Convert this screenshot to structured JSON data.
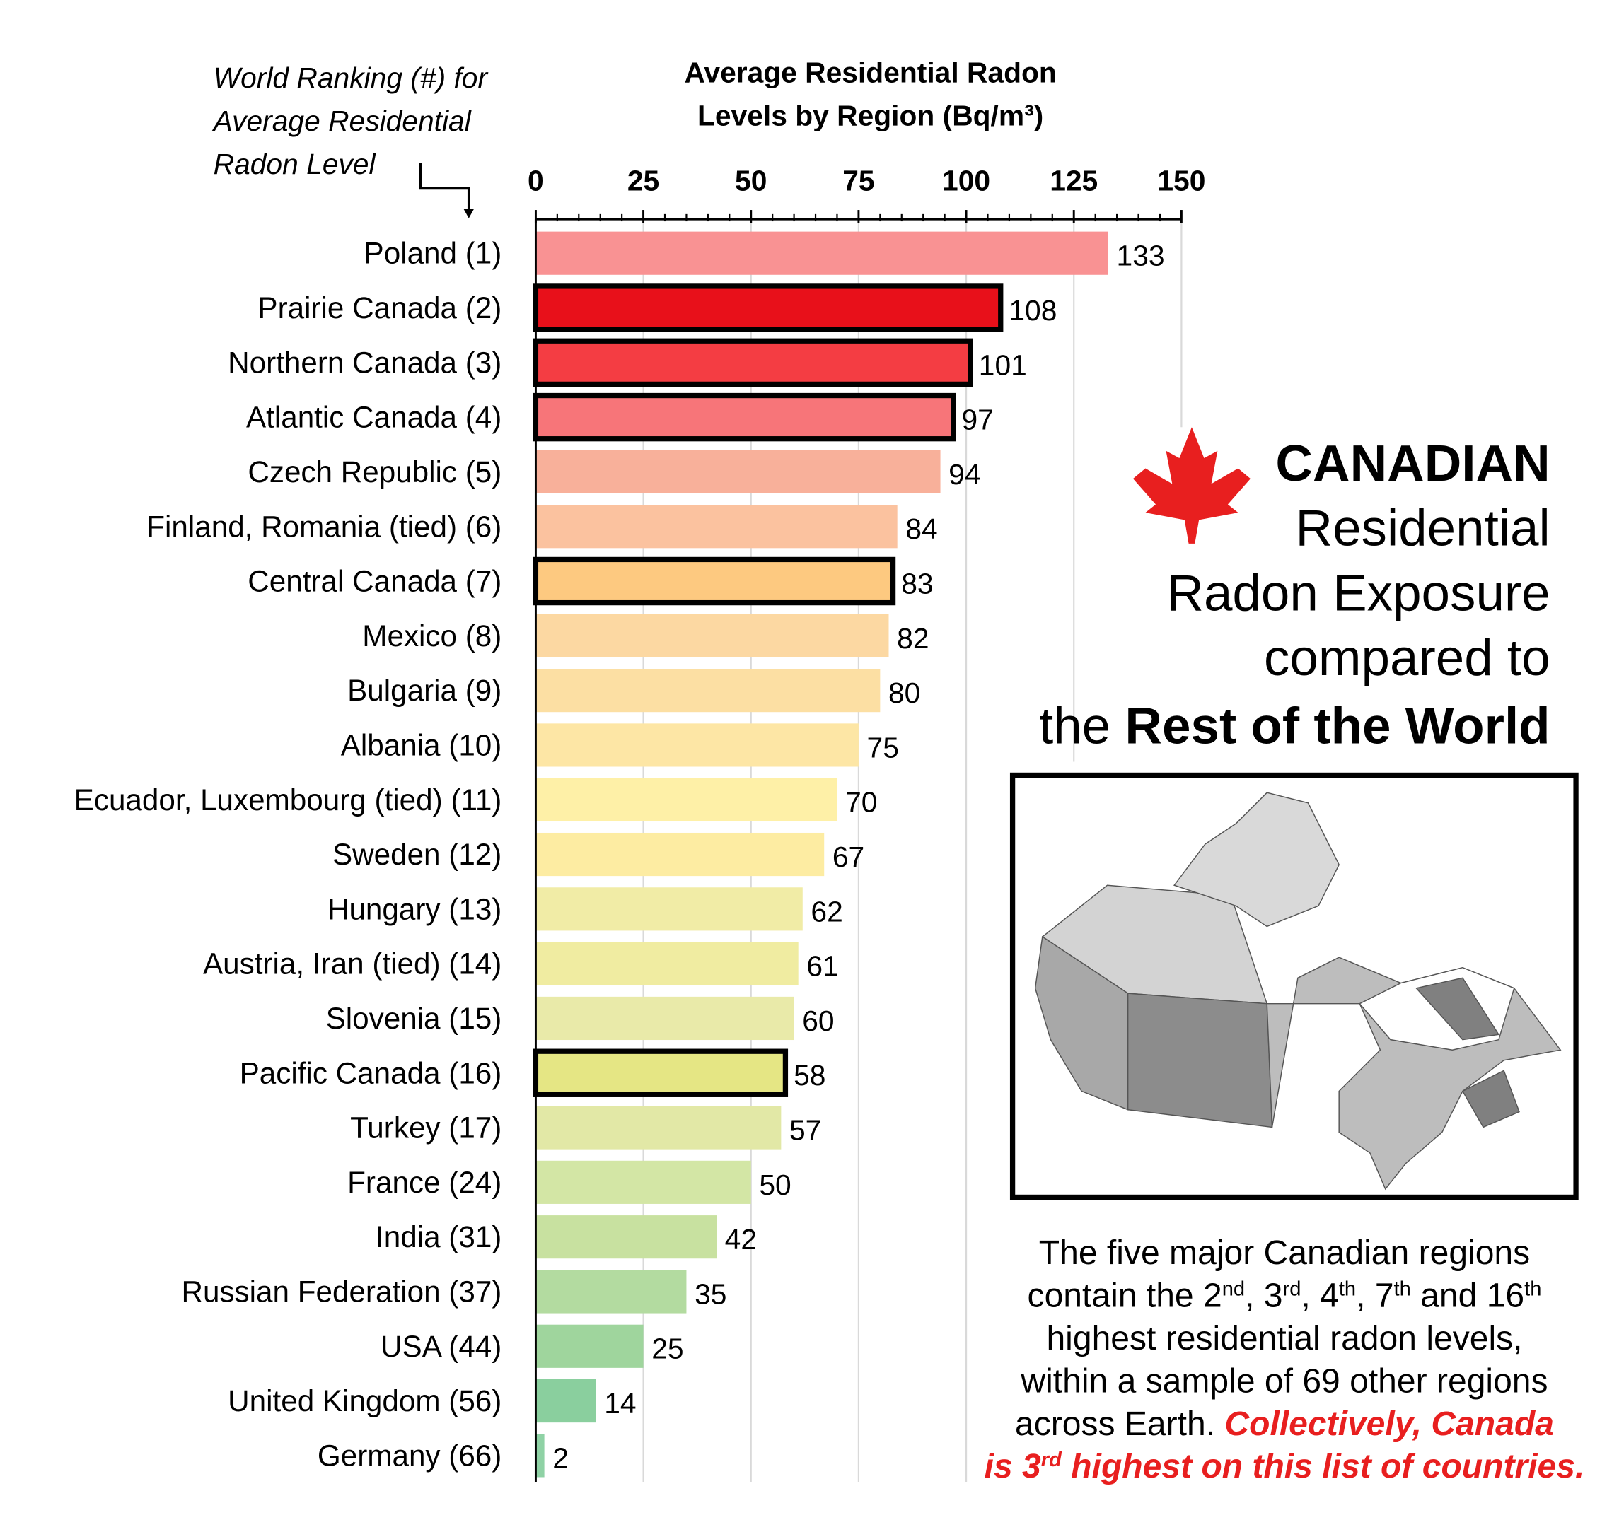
{
  "chart_data": {
    "type": "bar",
    "orientation": "horizontal",
    "title": [
      "Average Residential Radon",
      "Levels by Region (Bq/m³)"
    ],
    "annotation": [
      "World Ranking (#) for",
      "Average Residential",
      "Radon Level"
    ],
    "categories": [
      "Poland (1)",
      "Prairie Canada (2)",
      "Northern Canada (3)",
      "Atlantic Canada (4)",
      "Czech Republic (5)",
      "Finland, Romania (tied) (6)",
      "Central Canada (7)",
      "Mexico (8)",
      "Bulgaria (9)",
      "Albania (10)",
      "Ecuador, Luxembourg (tied) (11)",
      "Sweden (12)",
      "Hungary (13)",
      "Austria, Iran (tied) (14)",
      "Slovenia (15)",
      "Pacific Canada (16)",
      "Turkey (17)",
      "France (24)",
      "India (31)",
      "Russian Federation (37)",
      "USA (44)",
      "United Kingdom (56)",
      "Germany (66)"
    ],
    "values": [
      133,
      108,
      101,
      97,
      94,
      84,
      83,
      82,
      80,
      75,
      70,
      67,
      62,
      61,
      60,
      58,
      57,
      50,
      42,
      35,
      25,
      14,
      2
    ],
    "colors": [
      "#f99293",
      "#e8101a",
      "#f43d43",
      "#f77579",
      "#f8b09a",
      "#fbc29f",
      "#fdc980",
      "#fcd8a2",
      "#fcdfa3",
      "#fde6a5",
      "#fef0a7",
      "#fdeca2",
      "#f1eca6",
      "#f0eca1",
      "#e9eaa9",
      "#e5e684",
      "#e2e8a6",
      "#d3e6a5",
      "#c8e1a0",
      "#b3dba0",
      "#9fd59d",
      "#8acf9e",
      "#8fd2a5"
    ],
    "outlined": [
      false,
      true,
      true,
      true,
      false,
      false,
      true,
      false,
      false,
      false,
      false,
      false,
      false,
      false,
      false,
      true,
      false,
      false,
      false,
      false,
      false,
      false,
      false
    ],
    "xlim": [
      0,
      150
    ],
    "xticks": [
      0,
      25,
      50,
      75,
      100,
      125,
      150
    ],
    "grid": true
  },
  "panel": {
    "heading": [
      "CANADIAN",
      "Residential",
      "Radon Exposure",
      "compared to"
    ],
    "heading_last": [
      "the ",
      "Rest of the World"
    ],
    "note": [
      [
        {
          "text": "The five major Canadian regions"
        }
      ],
      [
        {
          "text": "contain the 2"
        },
        {
          "text": "nd",
          "style": "sup"
        },
        {
          "text": ", 3"
        },
        {
          "text": "rd",
          "style": "sup"
        },
        {
          "text": ", 4"
        },
        {
          "text": "th",
          "style": "sup"
        },
        {
          "text": ", 7"
        },
        {
          "text": "th",
          "style": "sup"
        },
        {
          "text": " and 16"
        },
        {
          "text": "th",
          "style": "sup"
        }
      ],
      [
        {
          "text": "highest residential radon levels,"
        }
      ],
      [
        {
          "text": "within a sample of 69 other regions"
        }
      ],
      [
        {
          "text": "across Earth. "
        },
        {
          "text": "Collectively, Canada",
          "style": "red"
        }
      ],
      [
        {
          "text": "is 3",
          "style": "red"
        },
        {
          "text": "rd",
          "style": "red sup"
        },
        {
          "text": " highest on this list of countries.",
          "style": "red"
        }
      ]
    ]
  }
}
